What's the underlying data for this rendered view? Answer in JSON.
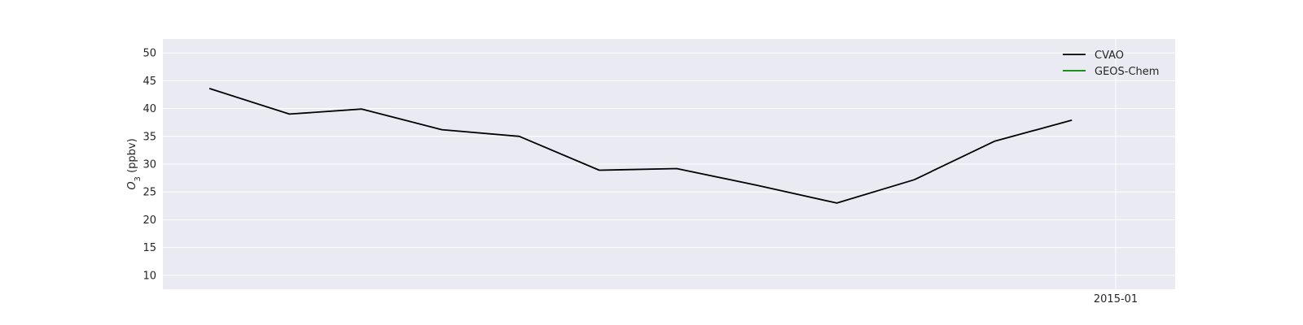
{
  "chart_data": {
    "type": "line",
    "title": "",
    "xlabel": "",
    "ylabel": "O3 (ppbv)",
    "ylabel_main": "O",
    "ylabel_sub": "3",
    "ylabel_unit": " (ppbv)",
    "ylim": [
      7.5,
      52.5
    ],
    "yticks": [
      10,
      15,
      20,
      25,
      30,
      35,
      40,
      45,
      50
    ],
    "x_tick_labels": [
      "2015-01"
    ],
    "grid": true,
    "legend_position": "top-right",
    "series": [
      {
        "name": "CVAO",
        "color": "#000000",
        "x": [
          "2014-01-15",
          "2014-02-15",
          "2014-03-15",
          "2014-04-15",
          "2014-05-15",
          "2014-06-15",
          "2014-07-15",
          "2014-08-15",
          "2014-09-15",
          "2014-10-15",
          "2014-11-15",
          "2014-12-15"
        ],
        "y": [
          43.6,
          39.0,
          39.9,
          36.2,
          35.0,
          28.9,
          29.2,
          26.2,
          23.0,
          27.2,
          34.1,
          37.9
        ]
      },
      {
        "name": "GEOS-Chem",
        "color": "#008000",
        "x": [],
        "y": []
      }
    ]
  }
}
